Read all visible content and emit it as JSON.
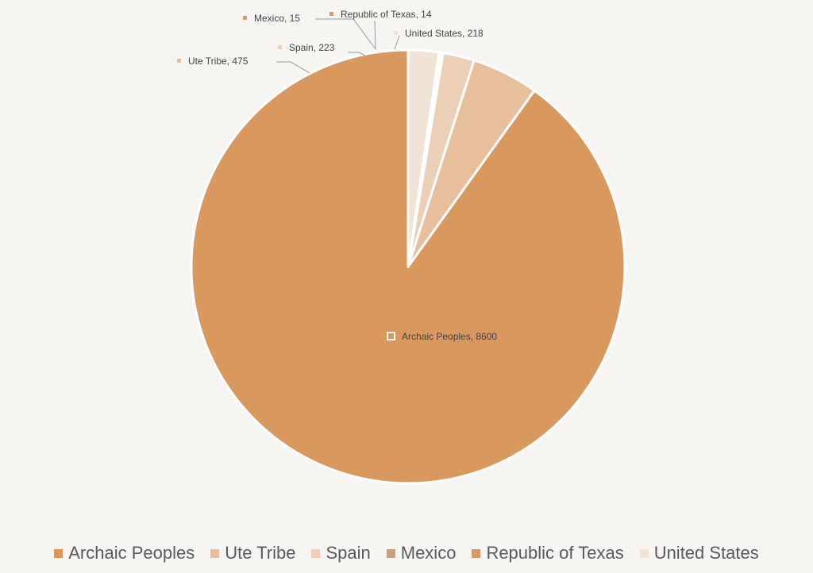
{
  "chart_data": {
    "type": "pie",
    "title": "",
    "slices": [
      {
        "label": "Archaic Peoples",
        "value": 8600,
        "color": "#d9985e",
        "data_label": "Archaic Peoples, 8600"
      },
      {
        "label": "Ute Tribe",
        "value": 475,
        "color": "#e7bf9c",
        "data_label": "Ute Tribe, 475"
      },
      {
        "label": "Spain",
        "value": 223,
        "color": "#ebcfb6",
        "data_label": "Spain, 223"
      },
      {
        "label": "Mexico",
        "value": 15,
        "color": "#caa07a",
        "data_label": "Mexico, 15"
      },
      {
        "label": "Republic of Texas",
        "value": 14,
        "color": "#d89a64",
        "data_label": "Republic of Texas, 14"
      },
      {
        "label": "United States",
        "value": 218,
        "color": "#f1e3d6",
        "data_label": "United States, 218"
      }
    ],
    "start_angle_deg": 0,
    "direction": "counterclockwise",
    "legend_position": "bottom",
    "data_labels": "outside with leader lines; largest slice labeled inside"
  }
}
